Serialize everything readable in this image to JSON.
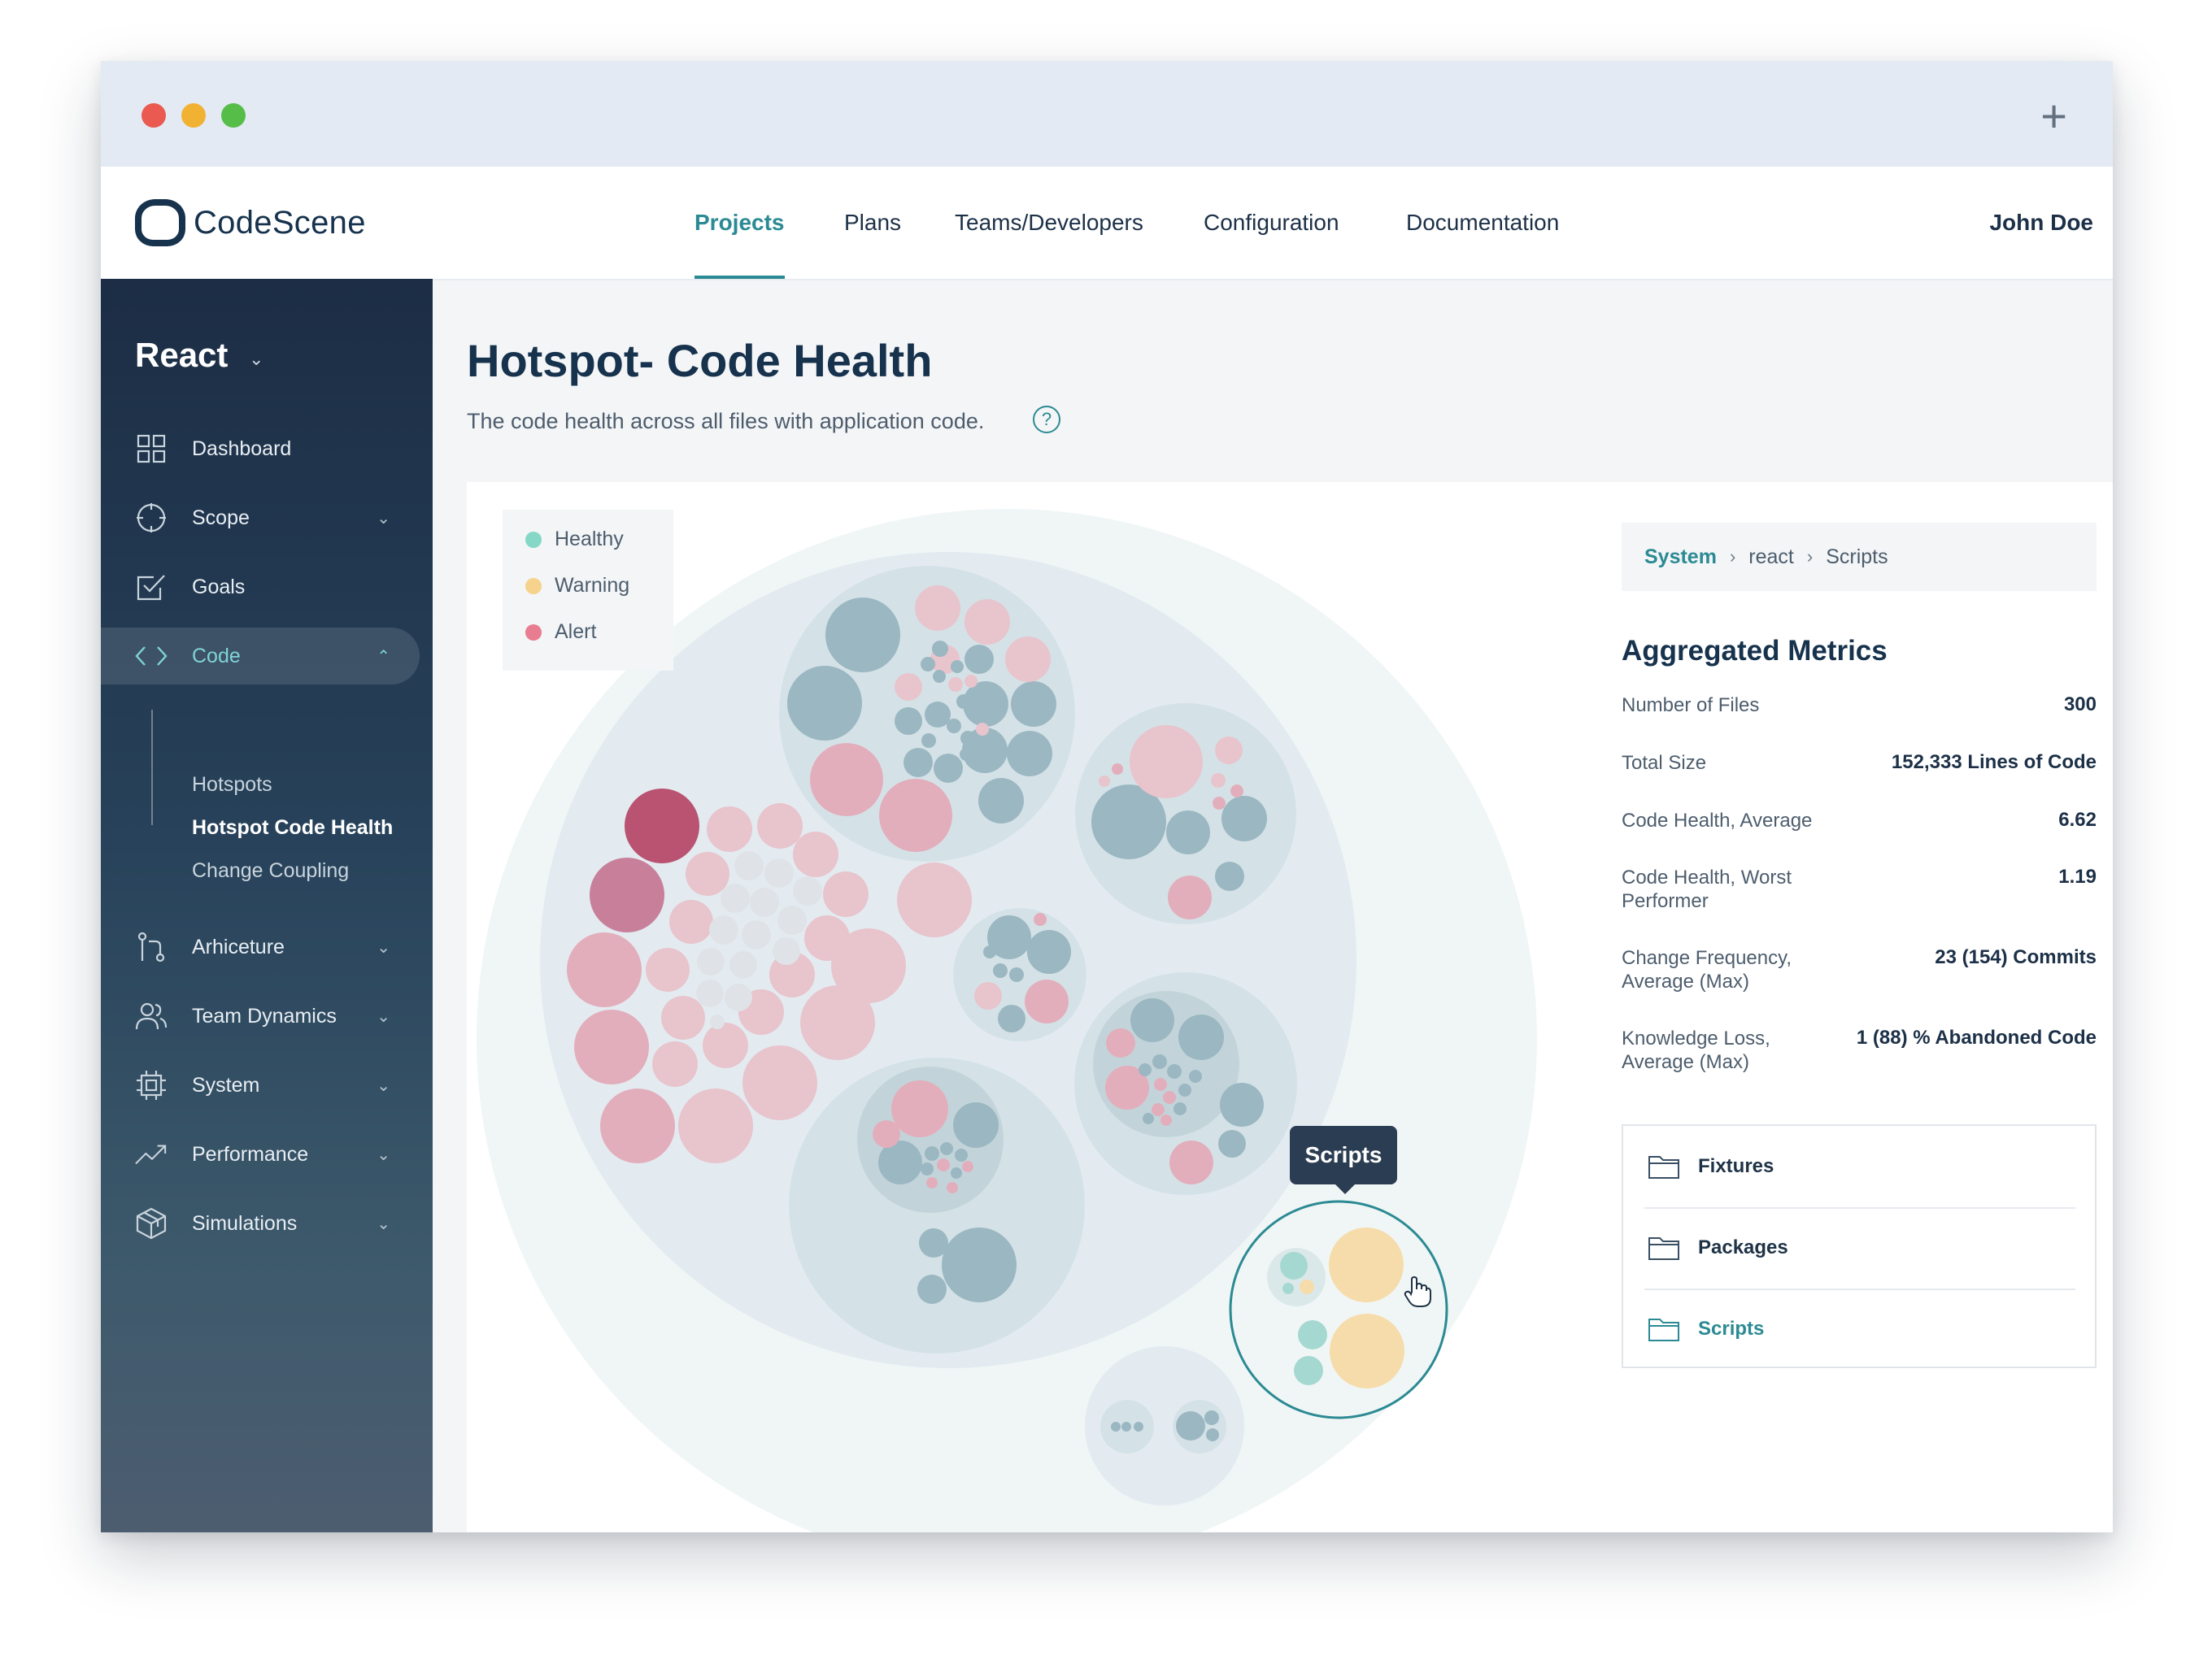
{
  "window": {
    "new_tab_label": "+"
  },
  "brand": {
    "name": "CodeScene"
  },
  "nav": {
    "items": [
      "Projects",
      "Plans",
      "Teams/Developers",
      "Configuration",
      "Documentation"
    ],
    "active": "Projects",
    "user": "John Doe"
  },
  "sidebar": {
    "project": "React",
    "items": [
      {
        "label": "Dashboard",
        "icon": "dashboard-grid-icon"
      },
      {
        "label": "Scope",
        "icon": "scope-crosshair-icon"
      },
      {
        "label": "Goals",
        "icon": "goals-checkbox-icon"
      },
      {
        "label": "Code",
        "icon": "code-brackets-icon"
      },
      {
        "label": "Arhiceture",
        "icon": "architecture-branch-icon"
      },
      {
        "label": "Team Dynamics",
        "icon": "team-users-icon"
      },
      {
        "label": "System",
        "icon": "system-chip-icon"
      },
      {
        "label": "Performance",
        "icon": "performance-trend-icon"
      },
      {
        "label": "Simulations",
        "icon": "simulations-cube-icon"
      }
    ],
    "code_subitems": [
      "Hotspots",
      "Hotspot Code Health",
      "Change Coupling"
    ],
    "active_item": "Code",
    "active_subitem": "Hotspot Code Health"
  },
  "page": {
    "title": "Hotspot- Code Health",
    "subtitle": "The code health across all files with application code.",
    "help_label": "?"
  },
  "legend": [
    {
      "label": "Healthy",
      "color": "#86d8c6"
    },
    {
      "label": "Warning",
      "color": "#f5d38c"
    },
    {
      "label": "Alert",
      "color": "#e87d91"
    }
  ],
  "colors": {
    "accent": "#2b8a93",
    "healthy_bubble": "#a6d8d2",
    "warning_bubble": "#f6dcaa",
    "alert_bubble": "#e3aebb",
    "alert_strong": "#b95371",
    "neutral_bubble": "#9bb7c2"
  },
  "tooltip": {
    "label": "Scripts"
  },
  "breadcrumb": [
    "System",
    "react",
    "Scripts"
  ],
  "metrics": {
    "title": "Aggregated Metrics",
    "rows": [
      {
        "label": "Number of Files",
        "value": "300"
      },
      {
        "label": "Total Size",
        "value": "152,333 Lines of Code"
      },
      {
        "label": "Code Health, Average",
        "value": "6.62"
      },
      {
        "label": "Code Health, Worst Performer",
        "value": "1.19"
      },
      {
        "label": "Change Frequency, Average (Max)",
        "value": "23 (154) Commits"
      },
      {
        "label": "Knowledge Loss, Average (Max)",
        "value": "1 (88) % Abandoned Code"
      }
    ]
  },
  "folders": [
    {
      "name": "Fixtures",
      "icon": "folder-icon"
    },
    {
      "name": "Packages",
      "icon": "folder-icon"
    },
    {
      "name": "Scripts",
      "icon": "folder-icon",
      "active": true
    }
  ]
}
